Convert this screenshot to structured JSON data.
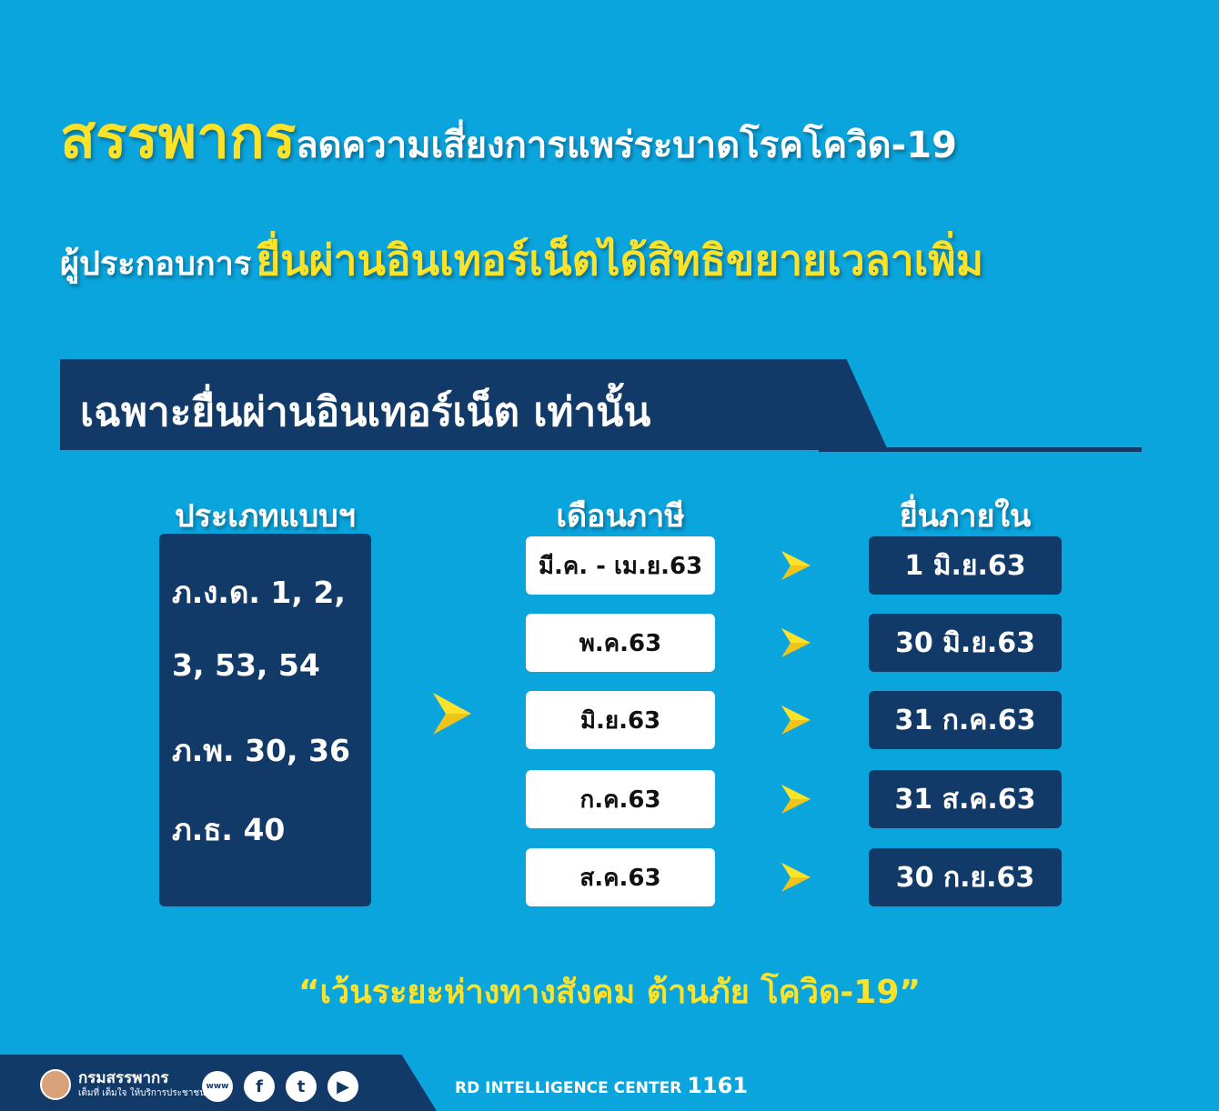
{
  "title": {
    "line1_highlight": "สรรพากร",
    "line1_rest": "ลดความเสี่ยงการแพร่ระบาดโรคโควิด-19",
    "line2_prefix": "ผู้ประกอบการ",
    "line2_highlight": "ยื่นผ่านอินเทอร์เน็ตได้สิทธิขยายเวลาเพิ่ม"
  },
  "banner": "เฉพาะยื่นผ่านอินเทอร์เน็ต เท่านั้น",
  "headers": {
    "forms": "ประเภทแบบฯ",
    "month": "เดือนภาษี",
    "deadline": "ยื่นภายใน"
  },
  "forms": [
    "ภ.ง.ด. 1, 2,",
    "3, 53, 54",
    "ภ.พ. 30, 36",
    "ภ.ธ. 40"
  ],
  "rows": [
    {
      "month": "มี.ค. - เม.ย.63",
      "deadline": "1 มิ.ย.63"
    },
    {
      "month": "พ.ค.63",
      "deadline": "30 มิ.ย.63"
    },
    {
      "month": "มิ.ย.63",
      "deadline": "31 ก.ค.63"
    },
    {
      "month": "ก.ค.63",
      "deadline": "31 ส.ค.63"
    },
    {
      "month": "ส.ค.63",
      "deadline": "30 ก.ย.63"
    }
  ],
  "quote": "“เว้นระยะห่างทางสังคม ต้านภัย โควิด-19”",
  "footer": {
    "org": "กรมสรรพากร",
    "slogan": "เต็มที่ เต็มใจ ให้บริการประชาชน",
    "center": "RD INTELLIGENCE CENTER",
    "phone": "1161",
    "social": [
      "www-icon",
      "facebook-icon",
      "twitter-icon",
      "youtube-icon"
    ]
  },
  "colors": {
    "background": "#0ba5de",
    "navy": "#123a68",
    "yellow": "#fde22a"
  }
}
